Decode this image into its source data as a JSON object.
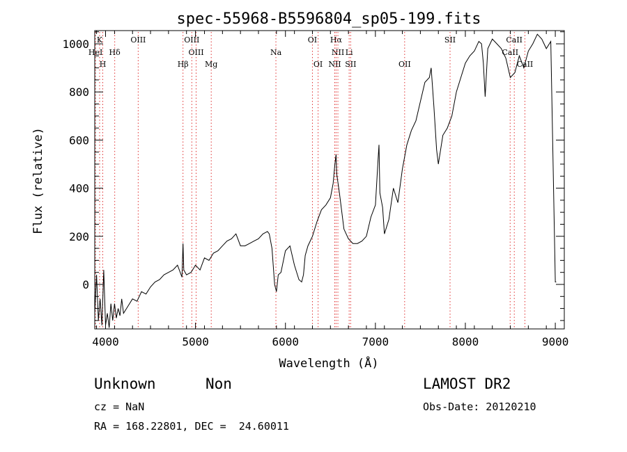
{
  "chart_data": {
    "type": "line",
    "title": "spec-55968-B5596804_sp05-199.fits",
    "xlabel": "Wavelength (Å)",
    "ylabel": "Flux (relative)",
    "xlim": [
      3880,
      9100
    ],
    "ylim": [
      -185,
      1055
    ],
    "xticks": [
      4000,
      5000,
      6000,
      7000,
      8000,
      9000
    ],
    "yticks": [
      0,
      200,
      400,
      600,
      800,
      1000
    ],
    "grid": false,
    "line_color": "#000000",
    "marker_color": "#e03030",
    "series": [
      {
        "x": [
          3880,
          3900,
          3920,
          3940,
          3960,
          3980,
          4000,
          4020,
          4040,
          4060,
          4080,
          4100,
          4120,
          4140,
          4160,
          4180,
          4200,
          4250,
          4300,
          4350,
          4400,
          4450,
          4500,
          4550,
          4600,
          4650,
          4700,
          4750,
          4800,
          4850,
          4861,
          4870,
          4900,
          4950,
          5000,
          5050,
          5100,
          5150,
          5200,
          5250,
          5300,
          5350,
          5400,
          5450,
          5500,
          5550,
          5600,
          5650,
          5700,
          5750,
          5800,
          5820,
          5850,
          5880,
          5900,
          5920,
          5950,
          6000,
          6050,
          6100,
          6150,
          6180,
          6200,
          6220,
          6250,
          6300,
          6350,
          6400,
          6450,
          6500,
          6530,
          6550,
          6563,
          6570,
          6600,
          6650,
          6700,
          6750,
          6800,
          6850,
          6900,
          6950,
          7000,
          7030,
          7040,
          7050,
          7080,
          7100,
          7150,
          7200,
          7250,
          7300,
          7350,
          7400,
          7450,
          7500,
          7550,
          7600,
          7620,
          7650,
          7680,
          7700,
          7750,
          7800,
          7850,
          7900,
          7950,
          8000,
          8050,
          8100,
          8150,
          8180,
          8200,
          8220,
          8250,
          8300,
          8350,
          8400,
          8450,
          8500,
          8550,
          8600,
          8650,
          8700,
          8750,
          8800,
          8850,
          8900,
          8950,
          9000,
          9010
        ],
        "y": [
          -120,
          40,
          -150,
          -60,
          -170,
          60,
          -170,
          -120,
          -180,
          -80,
          -150,
          -80,
          -140,
          -100,
          -130,
          -60,
          -120,
          -90,
          -60,
          -70,
          -30,
          -40,
          -10,
          10,
          20,
          40,
          50,
          60,
          80,
          30,
          170,
          60,
          40,
          50,
          80,
          60,
          110,
          100,
          130,
          140,
          160,
          180,
          190,
          210,
          160,
          160,
          170,
          180,
          190,
          210,
          220,
          210,
          150,
          0,
          -30,
          40,
          50,
          140,
          160,
          80,
          20,
          10,
          40,
          120,
          160,
          200,
          260,
          310,
          330,
          360,
          420,
          500,
          540,
          460,
          380,
          230,
          190,
          170,
          170,
          180,
          200,
          280,
          330,
          520,
          580,
          380,
          320,
          210,
          270,
          400,
          340,
          480,
          580,
          640,
          680,
          760,
          840,
          860,
          900,
          740,
          560,
          500,
          620,
          650,
          700,
          800,
          860,
          920,
          950,
          970,
          1010,
          1000,
          920,
          780,
          980,
          1020,
          1000,
          980,
          940,
          860,
          880,
          950,
          900,
          970,
          1000,
          1040,
          1020,
          980,
          1010,
          10,
          10
        ]
      }
    ],
    "lines": [
      {
        "label": "K",
        "x": 3934,
        "row": 1
      },
      {
        "label": "HeI",
        "x": 3889,
        "row": 2
      },
      {
        "label": "H",
        "x": 3969,
        "row": 3
      },
      {
        "label": "Hδ",
        "x": 4102,
        "row": 2
      },
      {
        "label": "OIII",
        "x": 4363,
        "row": 1
      },
      {
        "label": "OIII",
        "x": 4959,
        "row": 1
      },
      {
        "label": "OIII",
        "x": 5007,
        "row": 2
      },
      {
        "label": "Hβ",
        "x": 4861,
        "row": 3
      },
      {
        "label": "Mg",
        "x": 5175,
        "row": 3
      },
      {
        "label": "Na",
        "x": 5894,
        "row": 2
      },
      {
        "label": "OI",
        "x": 6300,
        "row": 1
      },
      {
        "label": "OI",
        "x": 6363,
        "row": 3
      },
      {
        "label": "Hα",
        "x": 6563,
        "row": 1
      },
      {
        "label": "NII",
        "x": 6583,
        "row": 2
      },
      {
        "label": "Li",
        "x": 6708,
        "row": 2
      },
      {
        "label": "NII",
        "x": 6548,
        "row": 3
      },
      {
        "label": "SII",
        "x": 6725,
        "row": 3
      },
      {
        "label": "OII",
        "x": 7325,
        "row": 3
      },
      {
        "label": "SII",
        "x": 7830,
        "row": 1
      },
      {
        "label": "CaII",
        "x": 8544,
        "row": 1
      },
      {
        "label": "CaII",
        "x": 8498,
        "row": 2
      },
      {
        "label": "CaII",
        "x": 8662,
        "row": 3
      }
    ]
  },
  "footer": {
    "class_label": "Unknown",
    "subclass_label": "Non",
    "survey_label": "LAMOST DR2",
    "cz_text": "cz = NaN",
    "obs_date_text": "Obs-Date: 20120210",
    "coords_text": "RA = 168.22801, DEC =  24.60011"
  }
}
